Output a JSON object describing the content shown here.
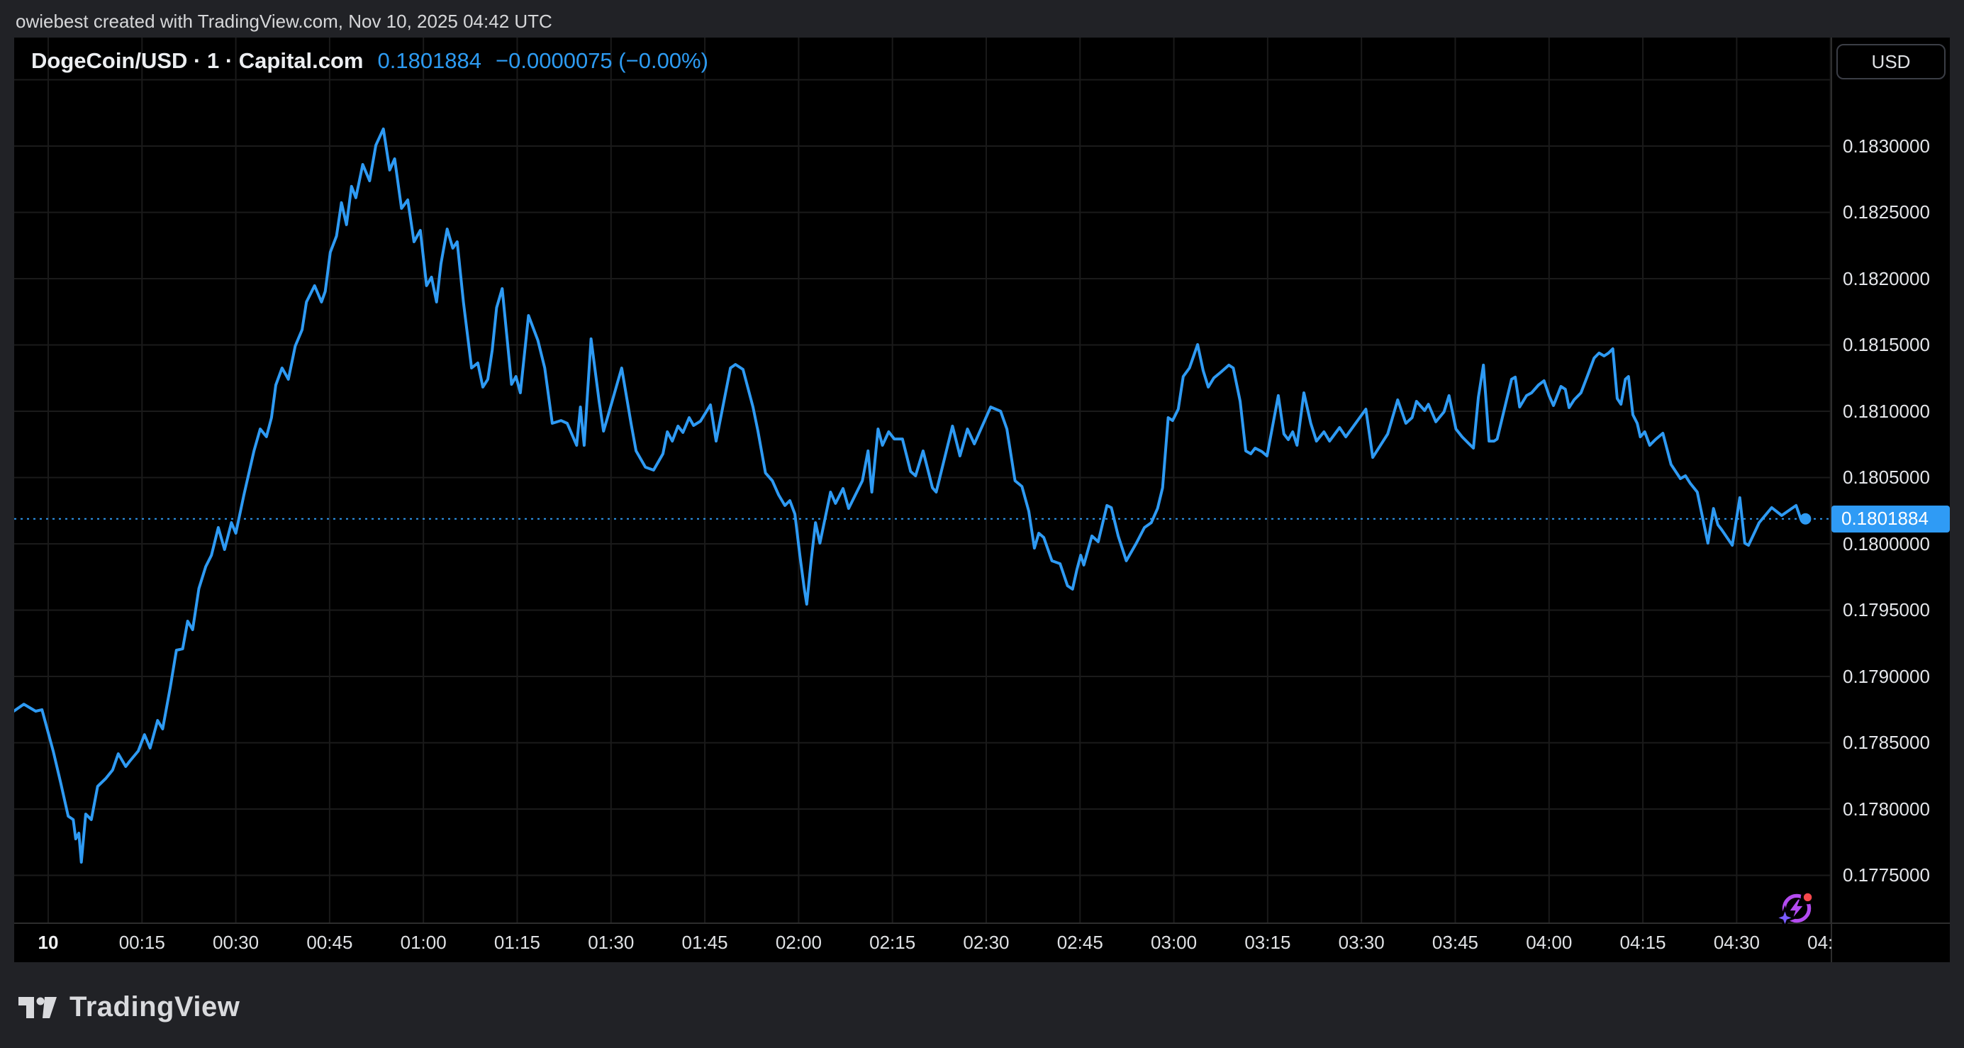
{
  "header": {
    "attribution": "owiebest created with TradingView.com, Nov 10, 2025 04:42 UTC"
  },
  "chart_header": {
    "symbol": "DogeCoin/USD · 1 · Capital.com",
    "price": "0.1801884",
    "change": "−0.0000075 (−0.00%)"
  },
  "price_axis": {
    "currency_button": "USD",
    "current_price_tag": "0.1801884",
    "labels": [
      {
        "label": "0.1830000",
        "value": 0.183
      },
      {
        "label": "0.1825000",
        "value": 0.1825
      },
      {
        "label": "0.1820000",
        "value": 0.182
      },
      {
        "label": "0.1815000",
        "value": 0.1815
      },
      {
        "label": "0.1810000",
        "value": 0.181
      },
      {
        "label": "0.1805000",
        "value": 0.1805
      },
      {
        "label": "0.1800000",
        "value": 0.18
      },
      {
        "label": "0.1795000",
        "value": 0.1795
      },
      {
        "label": "0.1790000",
        "value": 0.179
      },
      {
        "label": "0.1785000",
        "value": 0.1785
      },
      {
        "label": "0.1780000",
        "value": 0.178
      },
      {
        "label": "0.1775000",
        "value": 0.1775
      }
    ]
  },
  "time_axis": {
    "ticks": [
      {
        "label": "10",
        "min": 0,
        "bold": true
      },
      {
        "label": "00:15",
        "min": 15
      },
      {
        "label": "00:30",
        "min": 30
      },
      {
        "label": "00:45",
        "min": 45
      },
      {
        "label": "01:00",
        "min": 60
      },
      {
        "label": "01:15",
        "min": 75
      },
      {
        "label": "01:30",
        "min": 90
      },
      {
        "label": "01:45",
        "min": 105
      },
      {
        "label": "02:00",
        "min": 120
      },
      {
        "label": "02:15",
        "min": 135
      },
      {
        "label": "02:30",
        "min": 150
      },
      {
        "label": "02:45",
        "min": 165
      },
      {
        "label": "03:00",
        "min": 180
      },
      {
        "label": "03:15",
        "min": 195
      },
      {
        "label": "03:30",
        "min": 210
      },
      {
        "label": "03:45",
        "min": 225
      },
      {
        "label": "04:00",
        "min": 240
      },
      {
        "label": "04:15",
        "min": 255
      },
      {
        "label": "04:30",
        "min": 270
      },
      {
        "label": "04:45",
        "min": 285
      }
    ]
  },
  "footer": {
    "brand": "TradingView"
  },
  "icons": {
    "ai_sparkle": "ai-sparkle-lightning-icon"
  },
  "colors": {
    "line_blue": "#2e9af3",
    "tag_blue": "#2f9bf5",
    "title_blue": "#2d9bf2",
    "grid": "#1a1a1a",
    "separator": "#2d2d2d",
    "pane_bg": "#000000",
    "page_bg": "#212226",
    "axis_text": "#e4e6ea",
    "icon_purple": "#b44bf0",
    "icon_star_violet": "#7a5cff",
    "icon_red": "#f5484d"
  },
  "chart_data": {
    "type": "line",
    "title": "DogeCoin/USD 1-minute line chart (Capital.com)",
    "xlabel": "time (minutes since 00:00, Nov 10 2025 UTC)",
    "ylabel": "price (USD)",
    "xlim": [
      -5.44,
      285.15
    ],
    "ylim": [
      0.177139,
      0.183818
    ],
    "x_grid_minutes": [
      0,
      15,
      30,
      45,
      60,
      75,
      90,
      105,
      120,
      135,
      150,
      165,
      180,
      195,
      210,
      225,
      240,
      255,
      270,
      285
    ],
    "y_grid_prices": [
      0.1835,
      0.183,
      0.1825,
      0.182,
      0.1815,
      0.181,
      0.1805,
      0.18,
      0.1795,
      0.179,
      0.1785,
      0.178,
      0.1775
    ],
    "last_time_min": 281.0,
    "last_price": 0.1801884,
    "points": [
      [
        -5.7,
        0.178732
      ],
      [
        -3.9,
        0.178791
      ],
      [
        -2.0,
        0.178738
      ],
      [
        -1.0,
        0.178749
      ],
      [
        0.8,
        0.178438
      ],
      [
        2.0,
        0.178198
      ],
      [
        3.2,
        0.177946
      ],
      [
        4.0,
        0.17792
      ],
      [
        4.4,
        0.177775
      ],
      [
        4.9,
        0.177818
      ],
      [
        5.3,
        0.177599
      ],
      [
        6.0,
        0.177962
      ],
      [
        6.9,
        0.17792
      ],
      [
        7.9,
        0.178171
      ],
      [
        9.2,
        0.17823
      ],
      [
        10.3,
        0.178294
      ],
      [
        11.2,
        0.178417
      ],
      [
        12.4,
        0.178321
      ],
      [
        13.0,
        0.178358
      ],
      [
        14.4,
        0.178438
      ],
      [
        15.4,
        0.178561
      ],
      [
        16.3,
        0.17846
      ],
      [
        17.5,
        0.178668
      ],
      [
        18.3,
        0.178604
      ],
      [
        19.5,
        0.178914
      ],
      [
        20.5,
        0.179198
      ],
      [
        21.5,
        0.179208
      ],
      [
        22.3,
        0.179417
      ],
      [
        23.1,
        0.179353
      ],
      [
        24.1,
        0.179663
      ],
      [
        25.2,
        0.179829
      ],
      [
        26.1,
        0.179914
      ],
      [
        27.2,
        0.180123
      ],
      [
        28.2,
        0.179957
      ],
      [
        29.3,
        0.18016
      ],
      [
        30.0,
        0.18008
      ],
      [
        31.3,
        0.180369
      ],
      [
        32.9,
        0.180701
      ],
      [
        33.9,
        0.180866
      ],
      [
        34.9,
        0.180808
      ],
      [
        35.7,
        0.180952
      ],
      [
        36.4,
        0.181198
      ],
      [
        37.4,
        0.181326
      ],
      [
        38.4,
        0.181241
      ],
      [
        39.5,
        0.181492
      ],
      [
        40.6,
        0.181615
      ],
      [
        41.3,
        0.181824
      ],
      [
        42.6,
        0.181947
      ],
      [
        43.7,
        0.181824
      ],
      [
        44.3,
        0.181904
      ],
      [
        45.1,
        0.182198
      ],
      [
        46.1,
        0.182321
      ],
      [
        46.9,
        0.182573
      ],
      [
        47.7,
        0.182407
      ],
      [
        48.5,
        0.182696
      ],
      [
        49.2,
        0.18261
      ],
      [
        50.3,
        0.182861
      ],
      [
        51.4,
        0.182738
      ],
      [
        52.4,
        0.183006
      ],
      [
        53.6,
        0.183129
      ],
      [
        54.6,
        0.182819
      ],
      [
        55.4,
        0.182904
      ],
      [
        56.5,
        0.18253
      ],
      [
        57.5,
        0.182594
      ],
      [
        58.5,
        0.182278
      ],
      [
        59.5,
        0.182364
      ],
      [
        60.5,
        0.181947
      ],
      [
        61.3,
        0.182011
      ],
      [
        62.1,
        0.181824
      ],
      [
        62.8,
        0.182112
      ],
      [
        63.8,
        0.182374
      ],
      [
        64.7,
        0.18223
      ],
      [
        65.4,
        0.182278
      ],
      [
        66.4,
        0.181824
      ],
      [
        67.7,
        0.181326
      ],
      [
        68.7,
        0.181364
      ],
      [
        69.5,
        0.181182
      ],
      [
        70.3,
        0.181241
      ],
      [
        71.0,
        0.18146
      ],
      [
        71.7,
        0.181781
      ],
      [
        72.6,
        0.181925
      ],
      [
        74.1,
        0.181203
      ],
      [
        74.8,
        0.181262
      ],
      [
        75.5,
        0.181139
      ],
      [
        76.8,
        0.181722
      ],
      [
        78.3,
        0.181535
      ],
      [
        79.4,
        0.181326
      ],
      [
        80.6,
        0.180909
      ],
      [
        82.0,
        0.18093
      ],
      [
        83.0,
        0.180909
      ],
      [
        84.5,
        0.180743
      ],
      [
        85.1,
        0.181032
      ],
      [
        85.7,
        0.180743
      ],
      [
        86.8,
        0.181546
      ],
      [
        88.1,
        0.181075
      ],
      [
        88.8,
        0.18085
      ],
      [
        89.3,
        0.18093
      ],
      [
        91.7,
        0.181326
      ],
      [
        93.2,
        0.180909
      ],
      [
        94.0,
        0.180701
      ],
      [
        95.5,
        0.180578
      ],
      [
        96.8,
        0.180556
      ],
      [
        98.3,
        0.180679
      ],
      [
        99.0,
        0.180845
      ],
      [
        99.8,
        0.180775
      ],
      [
        100.7,
        0.180888
      ],
      [
        101.5,
        0.18084
      ],
      [
        102.5,
        0.180952
      ],
      [
        103.2,
        0.180893
      ],
      [
        104.3,
        0.180925
      ],
      [
        105.9,
        0.181048
      ],
      [
        106.8,
        0.180775
      ],
      [
        108.4,
        0.18116
      ],
      [
        109.1,
        0.181326
      ],
      [
        109.9,
        0.181353
      ],
      [
        111.1,
        0.181316
      ],
      [
        112.7,
        0.181032
      ],
      [
        113.5,
        0.18085
      ],
      [
        114.7,
        0.180535
      ],
      [
        115.8,
        0.180476
      ],
      [
        116.8,
        0.180369
      ],
      [
        117.8,
        0.180289
      ],
      [
        118.6,
        0.180326
      ],
      [
        119.4,
        0.180225
      ],
      [
        120.2,
        0.179914
      ],
      [
        120.9,
        0.179663
      ],
      [
        121.3,
        0.179545
      ],
      [
        122.0,
        0.179872
      ],
      [
        122.7,
        0.18016
      ],
      [
        123.4,
        0.180005
      ],
      [
        125.1,
        0.18039
      ],
      [
        125.9,
        0.180305
      ],
      [
        127.1,
        0.180417
      ],
      [
        128.0,
        0.180267
      ],
      [
        130.2,
        0.180476
      ],
      [
        131.1,
        0.180701
      ],
      [
        131.7,
        0.18039
      ],
      [
        132.7,
        0.180866
      ],
      [
        133.4,
        0.180743
      ],
      [
        134.4,
        0.180845
      ],
      [
        135.3,
        0.180791
      ],
      [
        136.6,
        0.180791
      ],
      [
        137.9,
        0.180546
      ],
      [
        138.7,
        0.180513
      ],
      [
        139.9,
        0.180701
      ],
      [
        141.4,
        0.180423
      ],
      [
        142.0,
        0.18039
      ],
      [
        144.6,
        0.180888
      ],
      [
        145.8,
        0.180663
      ],
      [
        147.0,
        0.180866
      ],
      [
        148.1,
        0.180754
      ],
      [
        150.7,
        0.181032
      ],
      [
        152.3,
        0.181
      ],
      [
        153.3,
        0.180866
      ],
      [
        154.6,
        0.180476
      ],
      [
        155.7,
        0.180433
      ],
      [
        156.8,
        0.180246
      ],
      [
        157.7,
        0.179968
      ],
      [
        158.4,
        0.18008
      ],
      [
        159.2,
        0.180048
      ],
      [
        160.5,
        0.179872
      ],
      [
        161.8,
        0.17985
      ],
      [
        163.0,
        0.179684
      ],
      [
        163.8,
        0.179658
      ],
      [
        164.5,
        0.179807
      ],
      [
        165.1,
        0.179914
      ],
      [
        165.6,
        0.17984
      ],
      [
        166.9,
        0.180059
      ],
      [
        167.9,
        0.180016
      ],
      [
        169.3,
        0.180289
      ],
      [
        170.0,
        0.180273
      ],
      [
        171.1,
        0.180059
      ],
      [
        172.4,
        0.179872
      ],
      [
        174.0,
        0.180005
      ],
      [
        175.3,
        0.180123
      ],
      [
        176.4,
        0.18016
      ],
      [
        177.4,
        0.180267
      ],
      [
        178.2,
        0.180423
      ],
      [
        179.1,
        0.180952
      ],
      [
        179.8,
        0.18093
      ],
      [
        180.7,
        0.181016
      ],
      [
        181.5,
        0.181262
      ],
      [
        182.5,
        0.181326
      ],
      [
        183.8,
        0.181503
      ],
      [
        184.7,
        0.181305
      ],
      [
        185.5,
        0.181182
      ],
      [
        186.4,
        0.181251
      ],
      [
        187.5,
        0.181294
      ],
      [
        188.8,
        0.181348
      ],
      [
        189.5,
        0.181326
      ],
      [
        190.6,
        0.181075
      ],
      [
        191.5,
        0.180701
      ],
      [
        192.3,
        0.180679
      ],
      [
        193.0,
        0.180722
      ],
      [
        194.1,
        0.180695
      ],
      [
        194.9,
        0.180663
      ],
      [
        196.7,
        0.181118
      ],
      [
        197.6,
        0.180829
      ],
      [
        198.3,
        0.180786
      ],
      [
        199.0,
        0.180845
      ],
      [
        199.7,
        0.180743
      ],
      [
        200.8,
        0.181139
      ],
      [
        201.9,
        0.180909
      ],
      [
        202.8,
        0.180775
      ],
      [
        204.0,
        0.180845
      ],
      [
        204.9,
        0.180775
      ],
      [
        206.5,
        0.180877
      ],
      [
        207.5,
        0.180807
      ],
      [
        210.7,
        0.181016
      ],
      [
        211.8,
        0.180652
      ],
      [
        214.2,
        0.180829
      ],
      [
        215.8,
        0.181086
      ],
      [
        217.1,
        0.180909
      ],
      [
        218.1,
        0.180952
      ],
      [
        218.8,
        0.181075
      ],
      [
        220.1,
        0.181005
      ],
      [
        220.7,
        0.181053
      ],
      [
        221.9,
        0.18092
      ],
      [
        223.2,
        0.180995
      ],
      [
        224.0,
        0.181118
      ],
      [
        225.1,
        0.180866
      ],
      [
        226.1,
        0.180807
      ],
      [
        227.1,
        0.180759
      ],
      [
        227.9,
        0.180722
      ],
      [
        228.7,
        0.181107
      ],
      [
        229.5,
        0.181348
      ],
      [
        230.4,
        0.180775
      ],
      [
        231.2,
        0.180775
      ],
      [
        231.7,
        0.180791
      ],
      [
        234.0,
        0.181241
      ],
      [
        234.6,
        0.181257
      ],
      [
        235.3,
        0.181032
      ],
      [
        236.4,
        0.181118
      ],
      [
        237.2,
        0.181139
      ],
      [
        238.3,
        0.181198
      ],
      [
        239.2,
        0.18123
      ],
      [
        240.0,
        0.181118
      ],
      [
        240.7,
        0.181043
      ],
      [
        241.9,
        0.181187
      ],
      [
        242.6,
        0.181166
      ],
      [
        243.2,
        0.181027
      ],
      [
        244.0,
        0.181086
      ],
      [
        245.1,
        0.181139
      ],
      [
        246.1,
        0.181262
      ],
      [
        247.2,
        0.181401
      ],
      [
        248.0,
        0.181439
      ],
      [
        248.8,
        0.181417
      ],
      [
        249.5,
        0.181439
      ],
      [
        250.2,
        0.181471
      ],
      [
        250.9,
        0.181096
      ],
      [
        251.5,
        0.181053
      ],
      [
        252.2,
        0.181241
      ],
      [
        252.7,
        0.181262
      ],
      [
        253.4,
        0.180973
      ],
      [
        254.1,
        0.180909
      ],
      [
        254.6,
        0.180807
      ],
      [
        255.3,
        0.180845
      ],
      [
        256.1,
        0.180743
      ],
      [
        257.0,
        0.180786
      ],
      [
        258.2,
        0.180834
      ],
      [
        259.5,
        0.180599
      ],
      [
        261.0,
        0.180492
      ],
      [
        261.8,
        0.180513
      ],
      [
        262.6,
        0.180455
      ],
      [
        263.7,
        0.18039
      ],
      [
        265.4,
        0.180005
      ],
      [
        266.3,
        0.180267
      ],
      [
        267.0,
        0.180144
      ],
      [
        267.6,
        0.180107
      ],
      [
        269.3,
        0.179989
      ],
      [
        270.5,
        0.180348
      ],
      [
        271.3,
        0.180005
      ],
      [
        271.9,
        0.179989
      ],
      [
        273.6,
        0.18016
      ],
      [
        275.6,
        0.180273
      ],
      [
        277.2,
        0.180214
      ],
      [
        278.8,
        0.180267
      ],
      [
        279.5,
        0.180289
      ],
      [
        280.3,
        0.180182
      ],
      [
        281.0,
        0.1801884
      ]
    ]
  }
}
